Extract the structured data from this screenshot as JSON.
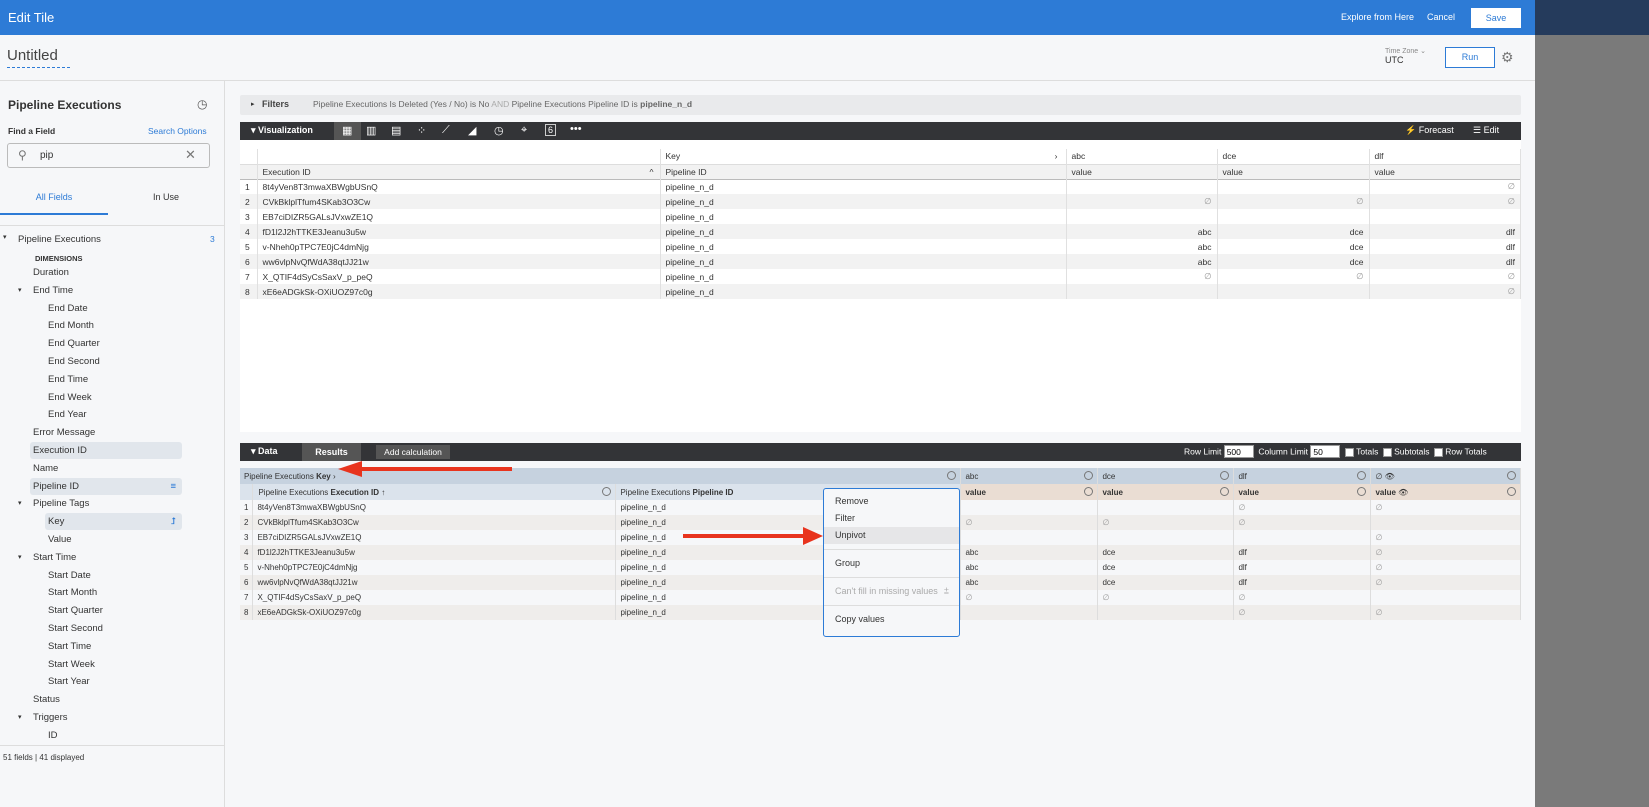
{
  "header": {
    "title": "Edit Tile",
    "explore": "Explore from Here",
    "cancel": "Cancel",
    "save": "Save"
  },
  "tile": {
    "name": "Untitled",
    "timezone_label": "Time Zone",
    "timezone": "UTC",
    "run": "Run"
  },
  "sidebar": {
    "title": "Pipeline Executions",
    "find_label": "Find a Field",
    "search_options": "Search Options",
    "search_value": "pip",
    "tabs": [
      "All Fields",
      "In Use"
    ],
    "view": "Pipeline Executions",
    "view_count": "3",
    "dimensions_label": "DIMENSIONS",
    "items": [
      {
        "label": "Duration",
        "level": 1
      },
      {
        "label": "End Time",
        "level": 1,
        "group": true
      },
      {
        "label": "End Date",
        "level": 2
      },
      {
        "label": "End Month",
        "level": 2
      },
      {
        "label": "End Quarter",
        "level": 2
      },
      {
        "label": "End Second",
        "level": 2
      },
      {
        "label": "End Time",
        "level": 2
      },
      {
        "label": "End Week",
        "level": 2
      },
      {
        "label": "End Year",
        "level": 2
      },
      {
        "label": "Error Message",
        "level": 1
      },
      {
        "label": "Execution ID",
        "level": 1,
        "selected": true
      },
      {
        "label": "Name",
        "level": 1
      },
      {
        "label": "Pipeline ID",
        "level": 1,
        "selected": true,
        "filter": true
      },
      {
        "label": "Pipeline Tags",
        "level": 1,
        "group": true
      },
      {
        "label": "Key",
        "level": 2,
        "selected": true,
        "pivot": true
      },
      {
        "label": "Value",
        "level": 2
      },
      {
        "label": "Start Time",
        "level": 1,
        "group": true
      },
      {
        "label": "Start Date",
        "level": 2
      },
      {
        "label": "Start Month",
        "level": 2
      },
      {
        "label": "Start Quarter",
        "level": 2
      },
      {
        "label": "Start Second",
        "level": 2
      },
      {
        "label": "Start Time",
        "level": 2
      },
      {
        "label": "Start Week",
        "level": 2
      },
      {
        "label": "Start Year",
        "level": 2
      },
      {
        "label": "Status",
        "level": 1
      },
      {
        "label": "Triggers",
        "level": 1,
        "group": true
      },
      {
        "label": "ID",
        "level": 2
      }
    ],
    "footer": "51 fields | 41 displayed"
  },
  "filters": {
    "label": "Filters",
    "text1": "Pipeline Executions Is Deleted (Yes / No) is No",
    "and": "AND",
    "text2": "Pipeline Executions Pipeline ID is",
    "value2": "pipeline_n_d"
  },
  "visualization": {
    "label": "Visualization",
    "forecast": "Forecast",
    "edit": "Edit",
    "single_value_glyph": "6",
    "pivot_label": "Key",
    "dim_header": "Execution ID",
    "pipeline_header": "Pipeline ID",
    "pivots": [
      "abc",
      "dce",
      "dlf"
    ],
    "measure": "value",
    "rows": [
      [
        "8t4yVen8T3mwaXBWgbUSnQ",
        "pipeline_n_d",
        "",
        "",
        "∅"
      ],
      [
        "CVkBklplTfum4SKab3O3Cw",
        "pipeline_n_d",
        "∅",
        "∅",
        "∅"
      ],
      [
        "EB7ciDIZR5GALsJVxwZE1Q",
        "pipeline_n_d",
        "",
        "",
        ""
      ],
      [
        "fD1l2J2hTTKE3Jeanu3u5w",
        "pipeline_n_d",
        "abc",
        "dce",
        "dlf"
      ],
      [
        "v-Nheh0pTPC7E0jC4dmNjg",
        "pipeline_n_d",
        "abc",
        "dce",
        "dlf"
      ],
      [
        "ww6vlpNvQfWdA38qtJJ21w",
        "pipeline_n_d",
        "abc",
        "dce",
        "dlf"
      ],
      [
        "X_QTIF4dSyCsSaxV_p_peQ",
        "pipeline_n_d",
        "∅",
        "∅",
        "∅"
      ],
      [
        "xE6eADGkSk-OXiUOZ97c0g",
        "pipeline_n_d",
        "",
        "",
        "∅"
      ]
    ]
  },
  "data": {
    "label": "Data",
    "results_tab": "Results",
    "add_calc": "Add calculation",
    "row_limit_label": "Row Limit",
    "row_limit": "500",
    "col_limit_label": "Column Limit",
    "col_limit": "50",
    "totals": "Totals",
    "subtotals": "Subtotals",
    "row_totals": "Row Totals",
    "pivot_header_prefix": "Pipeline Executions",
    "pivot_header_field": "Key",
    "dim_prefix": "Pipeline Executions",
    "dim_field": "Execution ID",
    "pipe_prefix": "Pipeline Executions",
    "pipe_field": "Pipeline ID",
    "pivots": [
      "abc",
      "dce",
      "dlf",
      "∅"
    ],
    "measure": "value",
    "rows": [
      [
        "8t4yVen8T3mwaXBWgbUSnQ",
        "pipeline_n_d",
        "",
        "",
        "∅",
        "∅"
      ],
      [
        "CVkBklplTfum4SKab3O3Cw",
        "pipeline_n_d",
        "∅",
        "∅",
        "∅",
        ""
      ],
      [
        "EB7ciDIZR5GALsJVxwZE1Q",
        "pipeline_n_d",
        "",
        "",
        "",
        "∅"
      ],
      [
        "fD1l2J2hTTKE3Jeanu3u5w",
        "pipeline_n_d",
        "abc",
        "dce",
        "dlf",
        "∅"
      ],
      [
        "v-Nheh0pTPC7E0jC4dmNjg",
        "pipeline_n_d",
        "abc",
        "dce",
        "dlf",
        "∅"
      ],
      [
        "ww6vlpNvQfWdA38qtJJ21w",
        "pipeline_n_d",
        "abc",
        "dce",
        "dlf",
        "∅"
      ],
      [
        "X_QTIF4dSyCsSaxV_p_peQ",
        "pipeline_n_d",
        "∅",
        "∅",
        "∅",
        ""
      ],
      [
        "xE6eADGkSk-OXiUOZ97c0g",
        "pipeline_n_d",
        "",
        "",
        "∅",
        "∅"
      ]
    ]
  },
  "context_menu": {
    "items": [
      "Remove",
      "Filter",
      "Unpivot",
      "Group",
      "Can't fill in missing values",
      "Copy values"
    ]
  },
  "colors": {
    "accent": "#2d7bd6",
    "annotation_arrow": "#e8341e",
    "dark_bar": "#333437"
  }
}
